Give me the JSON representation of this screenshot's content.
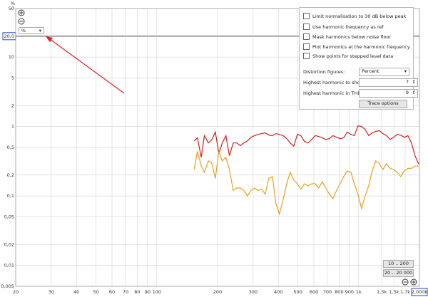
{
  "chart_data": {
    "type": "line",
    "y_label": "%",
    "log_x": true,
    "log_y": true,
    "grid": true,
    "xlim": [
      20,
      2000
    ],
    "ylim": [
      0.005,
      50
    ],
    "xticks": [
      20,
      30,
      40,
      50,
      60,
      70,
      80,
      90,
      100,
      200,
      300,
      400,
      500,
      600,
      700,
      800,
      900,
      {
        "value": 1000,
        "label": "1k"
      },
      {
        "value": 1300,
        "label": "1,3k"
      },
      {
        "value": 1500,
        "label": "1,5k"
      },
      {
        "value": 1700,
        "label": "1,7k"
      },
      {
        "value": 2000,
        "label": "2,000k"
      }
    ],
    "yticks": [
      50,
      {
        "value": 20,
        "label": "20,0"
      },
      10,
      5,
      2,
      1,
      {
        "value": 0.5,
        "label": "0,5"
      },
      {
        "value": 0.2,
        "label": "0,2"
      },
      {
        "value": 0.1,
        "label": "0,1"
      },
      {
        "value": 0.05,
        "label": "0,05"
      },
      {
        "value": 0.02,
        "label": "0,02"
      },
      {
        "value": 0.01,
        "label": "0,01"
      },
      {
        "value": 0.005,
        "label": "0,005"
      }
    ],
    "x": [
      153,
      159,
      166,
      172,
      180,
      187,
      195,
      203,
      211,
      220,
      229,
      239,
      249,
      259,
      270,
      281,
      293,
      305,
      318,
      331,
      344,
      359,
      374,
      389,
      405,
      422,
      440,
      458,
      477,
      497,
      517,
      539,
      561,
      585,
      609,
      634,
      660,
      688,
      716,
      746,
      777,
      809,
      843,
      878,
      915,
      952,
      992,
      1033,
      1076,
      1121,
      1167,
      1216,
      1266,
      1319,
      1373,
      1431,
      1490,
      1552,
      1616,
      1683,
      1753,
      1826,
      1902,
      1981
    ],
    "series": [
      {
        "color": "#cc1f1f",
        "values": [
          0.62,
          0.69,
          0.36,
          0.74,
          0.58,
          0.64,
          0.83,
          0.41,
          0.58,
          0.74,
          0.38,
          0.58,
          0.58,
          0.53,
          0.58,
          0.62,
          0.7,
          0.74,
          0.77,
          0.79,
          0.81,
          0.75,
          0.74,
          0.79,
          0.77,
          0.74,
          0.67,
          0.58,
          0.52,
          0.77,
          0.74,
          0.61,
          0.58,
          0.65,
          0.74,
          0.72,
          0.69,
          0.65,
          0.67,
          0.74,
          0.7,
          0.67,
          0.69,
          0.83,
          0.77,
          0.74,
          1.02,
          1.0,
          0.91,
          0.74,
          0.81,
          0.85,
          0.87,
          0.79,
          0.74,
          0.65,
          0.7,
          0.77,
          0.75,
          0.7,
          0.74,
          0.58,
          0.38,
          0.29
        ]
      },
      {
        "color": "#e8a020",
        "values": [
          0.24,
          0.44,
          0.27,
          0.22,
          0.32,
          0.3,
          0.18,
          0.44,
          0.32,
          0.36,
          0.24,
          0.12,
          0.13,
          0.13,
          0.12,
          0.1,
          0.12,
          0.13,
          0.12,
          0.125,
          0.106,
          0.18,
          0.19,
          0.078,
          0.055,
          0.088,
          0.15,
          0.22,
          0.17,
          0.15,
          0.125,
          0.15,
          0.14,
          0.15,
          0.15,
          0.13,
          0.16,
          0.13,
          0.106,
          0.092,
          0.12,
          0.15,
          0.19,
          0.23,
          0.22,
          0.15,
          0.106,
          0.066,
          0.1,
          0.14,
          0.23,
          0.32,
          0.29,
          0.24,
          0.29,
          0.25,
          0.24,
          0.22,
          0.19,
          0.23,
          0.25,
          0.25,
          0.27,
          0.27
        ]
      }
    ]
  },
  "unit_select": "%",
  "panel": {
    "checkboxes": [
      "Limit normalisation to 30 dB below peak",
      "Use harmonic frequency as ref",
      "Mask harmonics below noise floor",
      "Plot harmonics at the harmonic frequency",
      "Show points for stepped level data"
    ],
    "distortion_label": "Distortion figures:",
    "distortion_value": "Percent",
    "highest_show_label": "Highest harmonic to show:",
    "highest_show_value": 7,
    "highest_thd_label": "Highest harmonic in THD:",
    "highest_thd_value": 9,
    "trace_button": "Trace options"
  },
  "range_buttons": [
    "10 .. 200",
    "20 .. 20 000"
  ]
}
